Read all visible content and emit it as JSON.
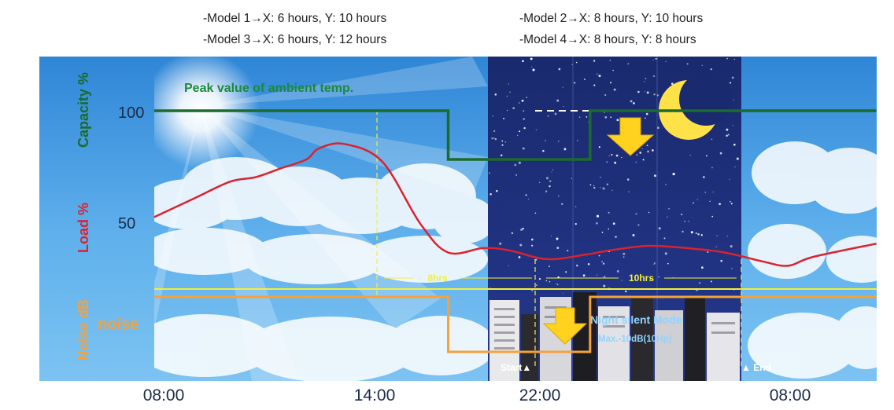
{
  "header": {
    "notes": [
      "-Model 1→X: 6 hours, Y: 10 hours",
      "-Model 3→X: 6 hours, Y: 12 hours",
      "-Model 2→X: 8 hours, Y: 10 hours",
      "-Model 4→X: 8 hours, Y: 8 hours"
    ]
  },
  "chart_data": {
    "type": "line",
    "colors": {
      "capacity": "#1b6b2c",
      "load": "#d9232f",
      "noise": "#f5a23c",
      "noise_threshold": "#f3ef3a",
      "night_bg": "#1d2f7a",
      "day_bg": "#4f9ee0"
    },
    "x_ticks": [
      "08:00",
      "14:00",
      "22:00",
      "08:00"
    ],
    "y_axis_labels": {
      "capacity": "Capacity %",
      "load": "Load %",
      "noise": "Noise dB"
    },
    "y_ticks": [
      "100",
      "50"
    ],
    "noise_tag": "noise",
    "annotations": {
      "peak": "Peak value of ambient temp.",
      "span_x": "8hrs",
      "span_y": "10hrs",
      "start": "Start▲",
      "end": "▲ End",
      "silent_mode": "Night silent Mode",
      "silent_max": "Max.-10dB(10Hp)"
    },
    "series": [
      {
        "id": "capacity",
        "x": [
          0,
          6,
          11.6,
          11.6,
          17.2,
          17.2,
          24,
          28.5
        ],
        "y": [
          100,
          100,
          100,
          78,
          78,
          100,
          100,
          100
        ]
      },
      {
        "id": "load",
        "x": [
          0,
          1.5,
          3,
          4,
          5,
          6,
          6.5,
          7.5,
          9,
          10.5,
          11.6,
          13,
          14,
          15.5,
          17,
          18,
          19.5,
          21,
          22.5,
          24,
          25,
          26,
          28.5
        ],
        "y": [
          52,
          60,
          68,
          70,
          74,
          78,
          83,
          85,
          77,
          49,
          36,
          38,
          37,
          33,
          35,
          37,
          39,
          38,
          36,
          32,
          30,
          34,
          40
        ]
      },
      {
        "id": "noise",
        "x": [
          0,
          11.6,
          11.6,
          17.2,
          17.2,
          28.5
        ],
        "y": [
          0,
          0,
          -10,
          -10,
          0,
          0
        ]
      }
    ]
  }
}
